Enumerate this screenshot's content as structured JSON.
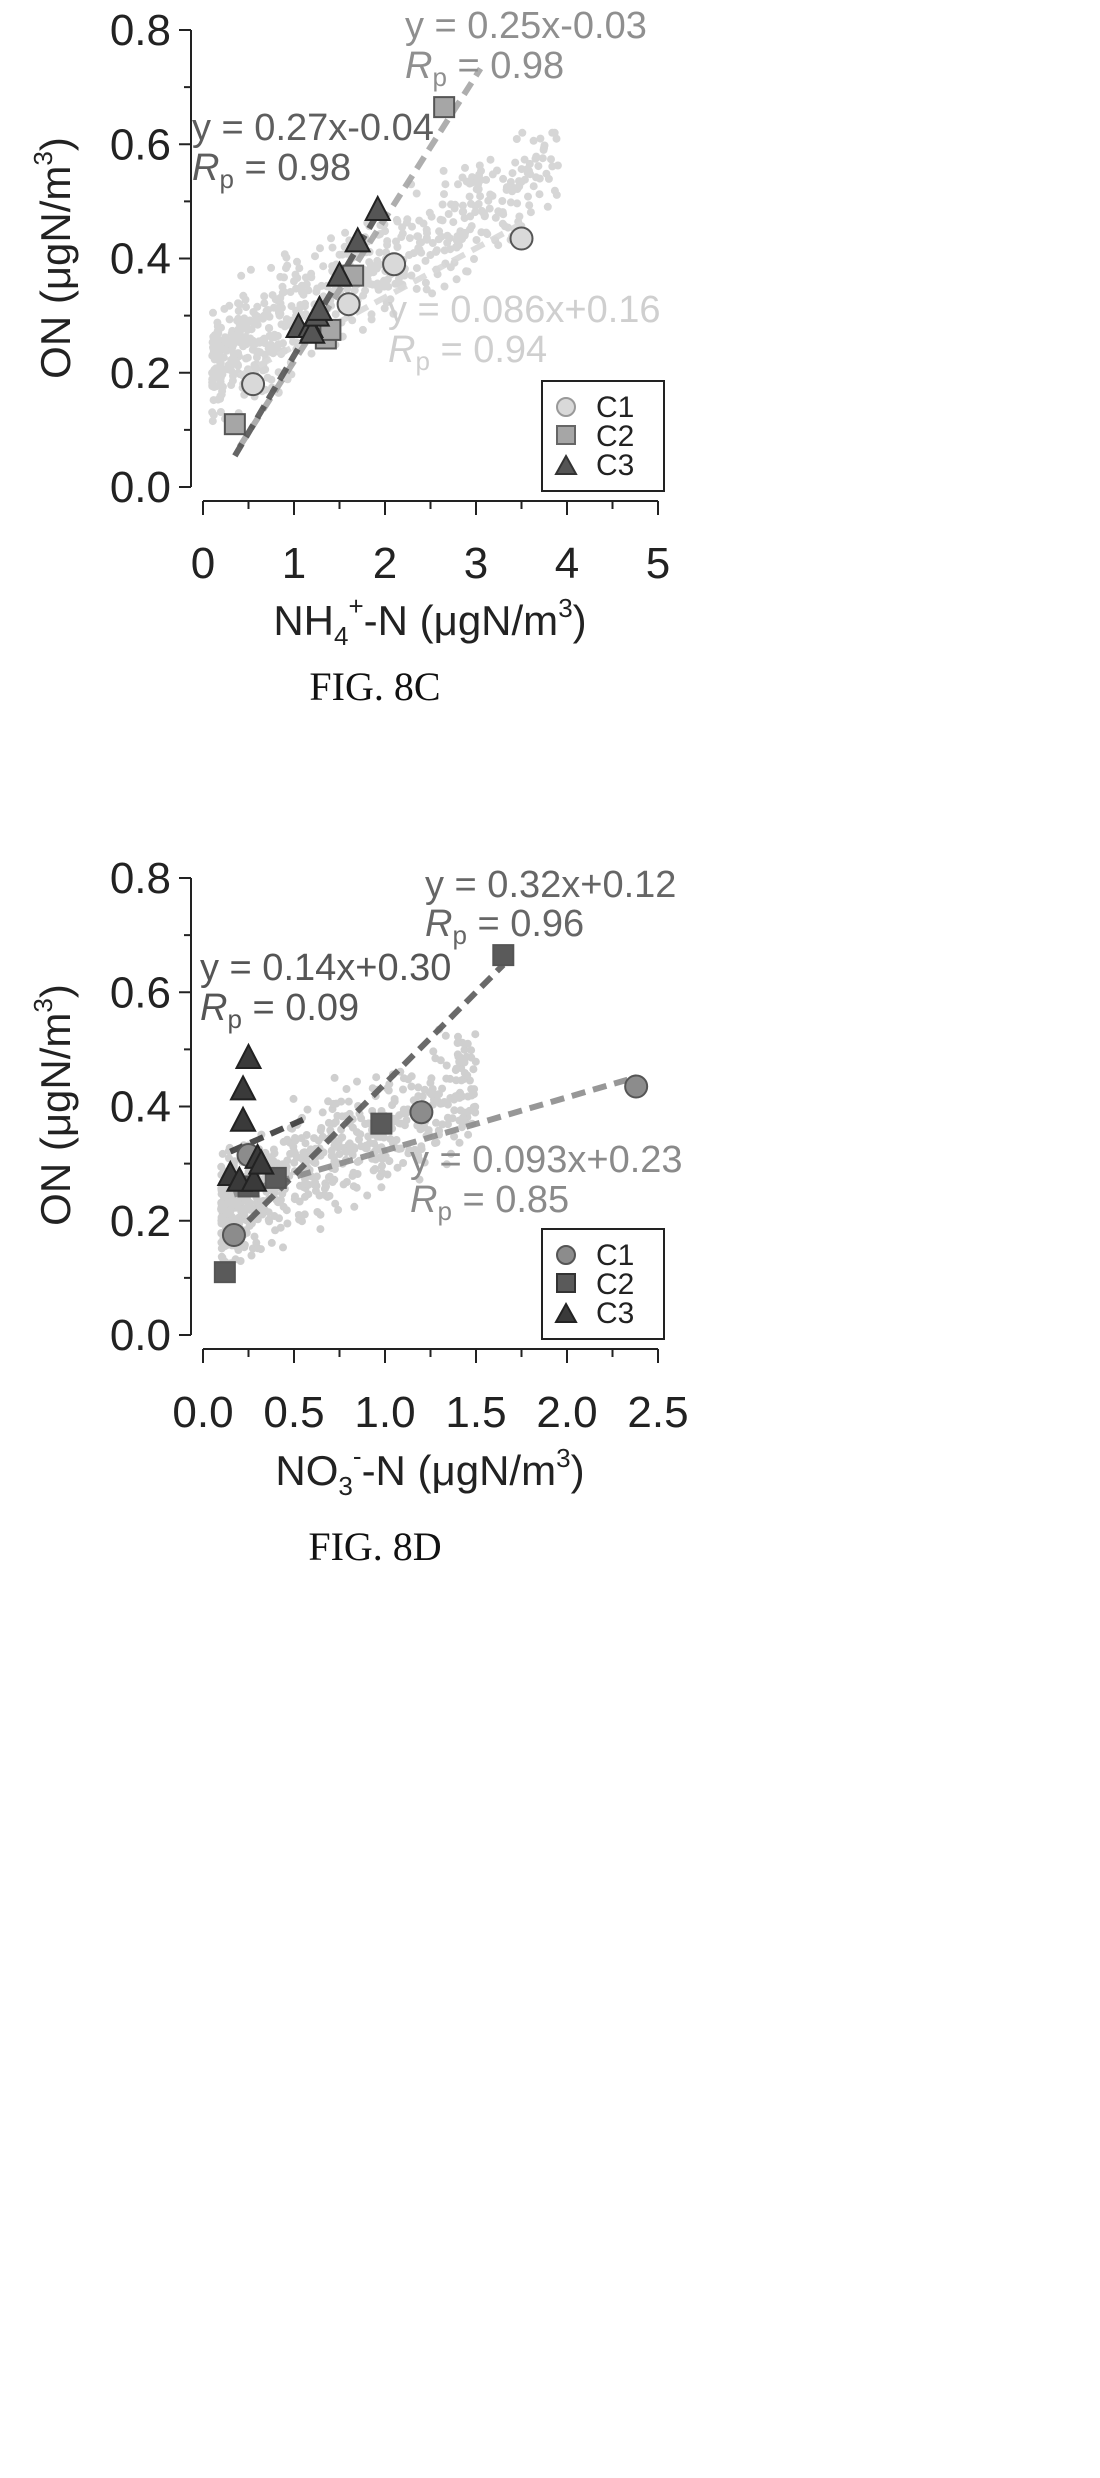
{
  "charts": [
    {
      "caption": "FIG. 8C",
      "ylabel": {
        "main": "ON (μgN/m",
        "sup": "3",
        "end": ")"
      },
      "xlabel": {
        "pre": "NH",
        "sub": "4",
        "sup": "+",
        "mid": "-N (μgN/m",
        "sup2": "3",
        "end": ")"
      },
      "xlim": [
        0,
        5
      ],
      "ylim": [
        0,
        0.8
      ],
      "xticks": [
        "0",
        "1",
        "2",
        "3",
        "4",
        "5"
      ],
      "yticks": [
        "0.0",
        "0.2",
        "0.4",
        "0.6",
        "0.8"
      ],
      "legend": [
        "C1",
        "C2",
        "C3"
      ],
      "annotations": [
        {
          "eq": "y = 0.25x-0.03",
          "r_symbol": "R",
          "r_sub": "p",
          "r_val": " = 0.98",
          "color": "#8f8f8f"
        },
        {
          "eq": "y = 0.27x-0.04",
          "r_symbol": "R",
          "r_sub": "p",
          "r_val": " = 0.98",
          "color": "#5e5e5e"
        },
        {
          "eq": "y = 0.086x+0.16",
          "r_symbol": "R",
          "r_sub": "p",
          "r_val": " = 0.94",
          "color": "#cfcfcf"
        }
      ]
    },
    {
      "caption": "FIG. 8D",
      "ylabel": {
        "main": "ON (μgN/m",
        "sup": "3",
        "end": ")"
      },
      "xlabel": {
        "pre": "NO",
        "sub": "3",
        "sup": "-",
        "mid": "-N (μgN/m",
        "sup2": "3",
        "end": ")"
      },
      "xlim": [
        0,
        2.5
      ],
      "ylim": [
        0,
        0.8
      ],
      "xticks": [
        "0.0",
        "0.5",
        "1.0",
        "1.5",
        "2.0",
        "2.5"
      ],
      "yticks": [
        "0.0",
        "0.2",
        "0.4",
        "0.6",
        "0.8"
      ],
      "legend": [
        "C1",
        "C2",
        "C3"
      ],
      "annotations": [
        {
          "eq": "y = 0.32x+0.12",
          "r_symbol": "R",
          "r_sub": "p",
          "r_val": " = 0.96",
          "color": "#666666"
        },
        {
          "eq": "y = 0.14x+0.30",
          "r_symbol": "R",
          "r_sub": "p",
          "r_val": " = 0.09",
          "color": "#555555"
        },
        {
          "eq": "y = 0.093x+0.23",
          "r_symbol": "R",
          "r_sub": "p",
          "r_val": " = 0.85",
          "color": "#8a8a8a"
        }
      ]
    }
  ],
  "chart_data": [
    {
      "type": "scatter",
      "xlim": [
        0,
        5
      ],
      "ylim": [
        0,
        0.8
      ],
      "grid": false,
      "legend_position": "bottom-right",
      "series": [
        {
          "name": "C1",
          "marker": "circle",
          "color": "#d9d9d9",
          "x": [
            0.55,
            1.6,
            2.1,
            3.5
          ],
          "y": [
            0.18,
            0.32,
            0.39,
            0.435
          ],
          "fit": {
            "slope": 0.086,
            "intercept": 0.16,
            "x_range": [
              0.4,
              3.5
            ]
          }
        },
        {
          "name": "C2",
          "marker": "square",
          "color": "#a6a6a6",
          "x": [
            0.35,
            1.35,
            1.4,
            1.65,
            2.65
          ],
          "y": [
            0.11,
            0.26,
            0.275,
            0.37,
            0.665
          ],
          "fit": {
            "slope": 0.25,
            "intercept": -0.03,
            "x_range": [
              0.4,
              3.05
            ]
          }
        },
        {
          "name": "C3",
          "marker": "triangle",
          "color": "#555555",
          "x": [
            1.05,
            1.18,
            1.2,
            1.25,
            1.28,
            1.5,
            1.7,
            1.92
          ],
          "y": [
            0.28,
            0.28,
            0.27,
            0.3,
            0.31,
            0.37,
            0.43,
            0.485
          ],
          "fit": {
            "slope": 0.27,
            "intercept": -0.04,
            "x_range": [
              0.35,
              1.95
            ]
          }
        }
      ]
    },
    {
      "type": "scatter",
      "xlim": [
        0,
        2.5
      ],
      "ylim": [
        0,
        0.8
      ],
      "grid": false,
      "legend_position": "bottom-right",
      "series": [
        {
          "name": "C1",
          "marker": "circle",
          "color": "#8c8c8c",
          "x": [
            0.17,
            0.25,
            1.2,
            2.38
          ],
          "y": [
            0.175,
            0.315,
            0.39,
            0.435
          ],
          "fit": {
            "slope": 0.093,
            "intercept": 0.23,
            "x_range": [
              0.17,
              2.38
            ]
          }
        },
        {
          "name": "C2",
          "marker": "square",
          "color": "#5a5a5a",
          "x": [
            0.12,
            0.25,
            0.4,
            0.98,
            1.65
          ],
          "y": [
            0.11,
            0.26,
            0.275,
            0.37,
            0.665
          ],
          "fit": {
            "slope": 0.32,
            "intercept": 0.12,
            "x_range": [
              0.25,
              1.65
            ]
          }
        },
        {
          "name": "C3",
          "marker": "triangle",
          "color": "#3a3a3a",
          "x": [
            0.15,
            0.2,
            0.22,
            0.22,
            0.25,
            0.28,
            0.3,
            0.32
          ],
          "y": [
            0.28,
            0.27,
            0.43,
            0.375,
            0.485,
            0.27,
            0.31,
            0.3
          ],
          "fit": {
            "slope": 0.14,
            "intercept": 0.3,
            "x_range": [
              0.15,
              0.55
            ]
          }
        }
      ]
    }
  ]
}
